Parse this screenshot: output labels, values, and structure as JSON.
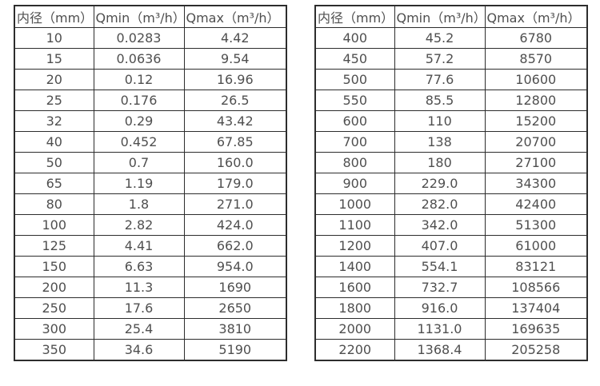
{
  "colors": {
    "border": "#2d2d2d",
    "text": "#4f4f4f",
    "bg": "#ffffff"
  },
  "tables": [
    {
      "name": "flow-table-small-diameters",
      "headers": [
        "内径（mm）",
        "Qmin（m³/h）",
        "Qmax（m³/h）"
      ],
      "rows": [
        [
          "10",
          "0.0283",
          "4.42"
        ],
        [
          "15",
          "0.0636",
          "9.54"
        ],
        [
          "20",
          "0.12",
          "16.96"
        ],
        [
          "25",
          "0.176",
          "26.5"
        ],
        [
          "32",
          "0.29",
          "43.42"
        ],
        [
          "40",
          "0.452",
          "67.85"
        ],
        [
          "50",
          "0.7",
          "160.0"
        ],
        [
          "65",
          "1.19",
          "179.0"
        ],
        [
          "80",
          "1.8",
          "271.0"
        ],
        [
          "100",
          "2.82",
          "424.0"
        ],
        [
          "125",
          "4.41",
          "662.0"
        ],
        [
          "150",
          "6.63",
          "954.0"
        ],
        [
          "200",
          "11.3",
          "1690"
        ],
        [
          "250",
          "17.6",
          "2650"
        ],
        [
          "300",
          "25.4",
          "3810"
        ],
        [
          "350",
          "34.6",
          "5190"
        ]
      ]
    },
    {
      "name": "flow-table-large-diameters",
      "headers": [
        "内径（mm）",
        "Qmin（m³/h）",
        "Qmax（m³/h）"
      ],
      "rows": [
        [
          "400",
          "45.2",
          "6780"
        ],
        [
          "450",
          "57.2",
          "8570"
        ],
        [
          "500",
          "77.6",
          "10600"
        ],
        [
          "550",
          "85.5",
          "12800"
        ],
        [
          "600",
          "110",
          "15200"
        ],
        [
          "700",
          "138",
          "20700"
        ],
        [
          "800",
          "180",
          "27100"
        ],
        [
          "900",
          "229.0",
          "34300"
        ],
        [
          "1000",
          "282.0",
          "42400"
        ],
        [
          "1100",
          "342.0",
          "51300"
        ],
        [
          "1200",
          "407.0",
          "61000"
        ],
        [
          "1400",
          "554.1",
          "83121"
        ],
        [
          "1600",
          "732.7",
          "108566"
        ],
        [
          "1800",
          "916.0",
          "137404"
        ],
        [
          "2000",
          "1131.0",
          "169635"
        ],
        [
          "2200",
          "1368.4",
          "205258"
        ]
      ]
    }
  ]
}
